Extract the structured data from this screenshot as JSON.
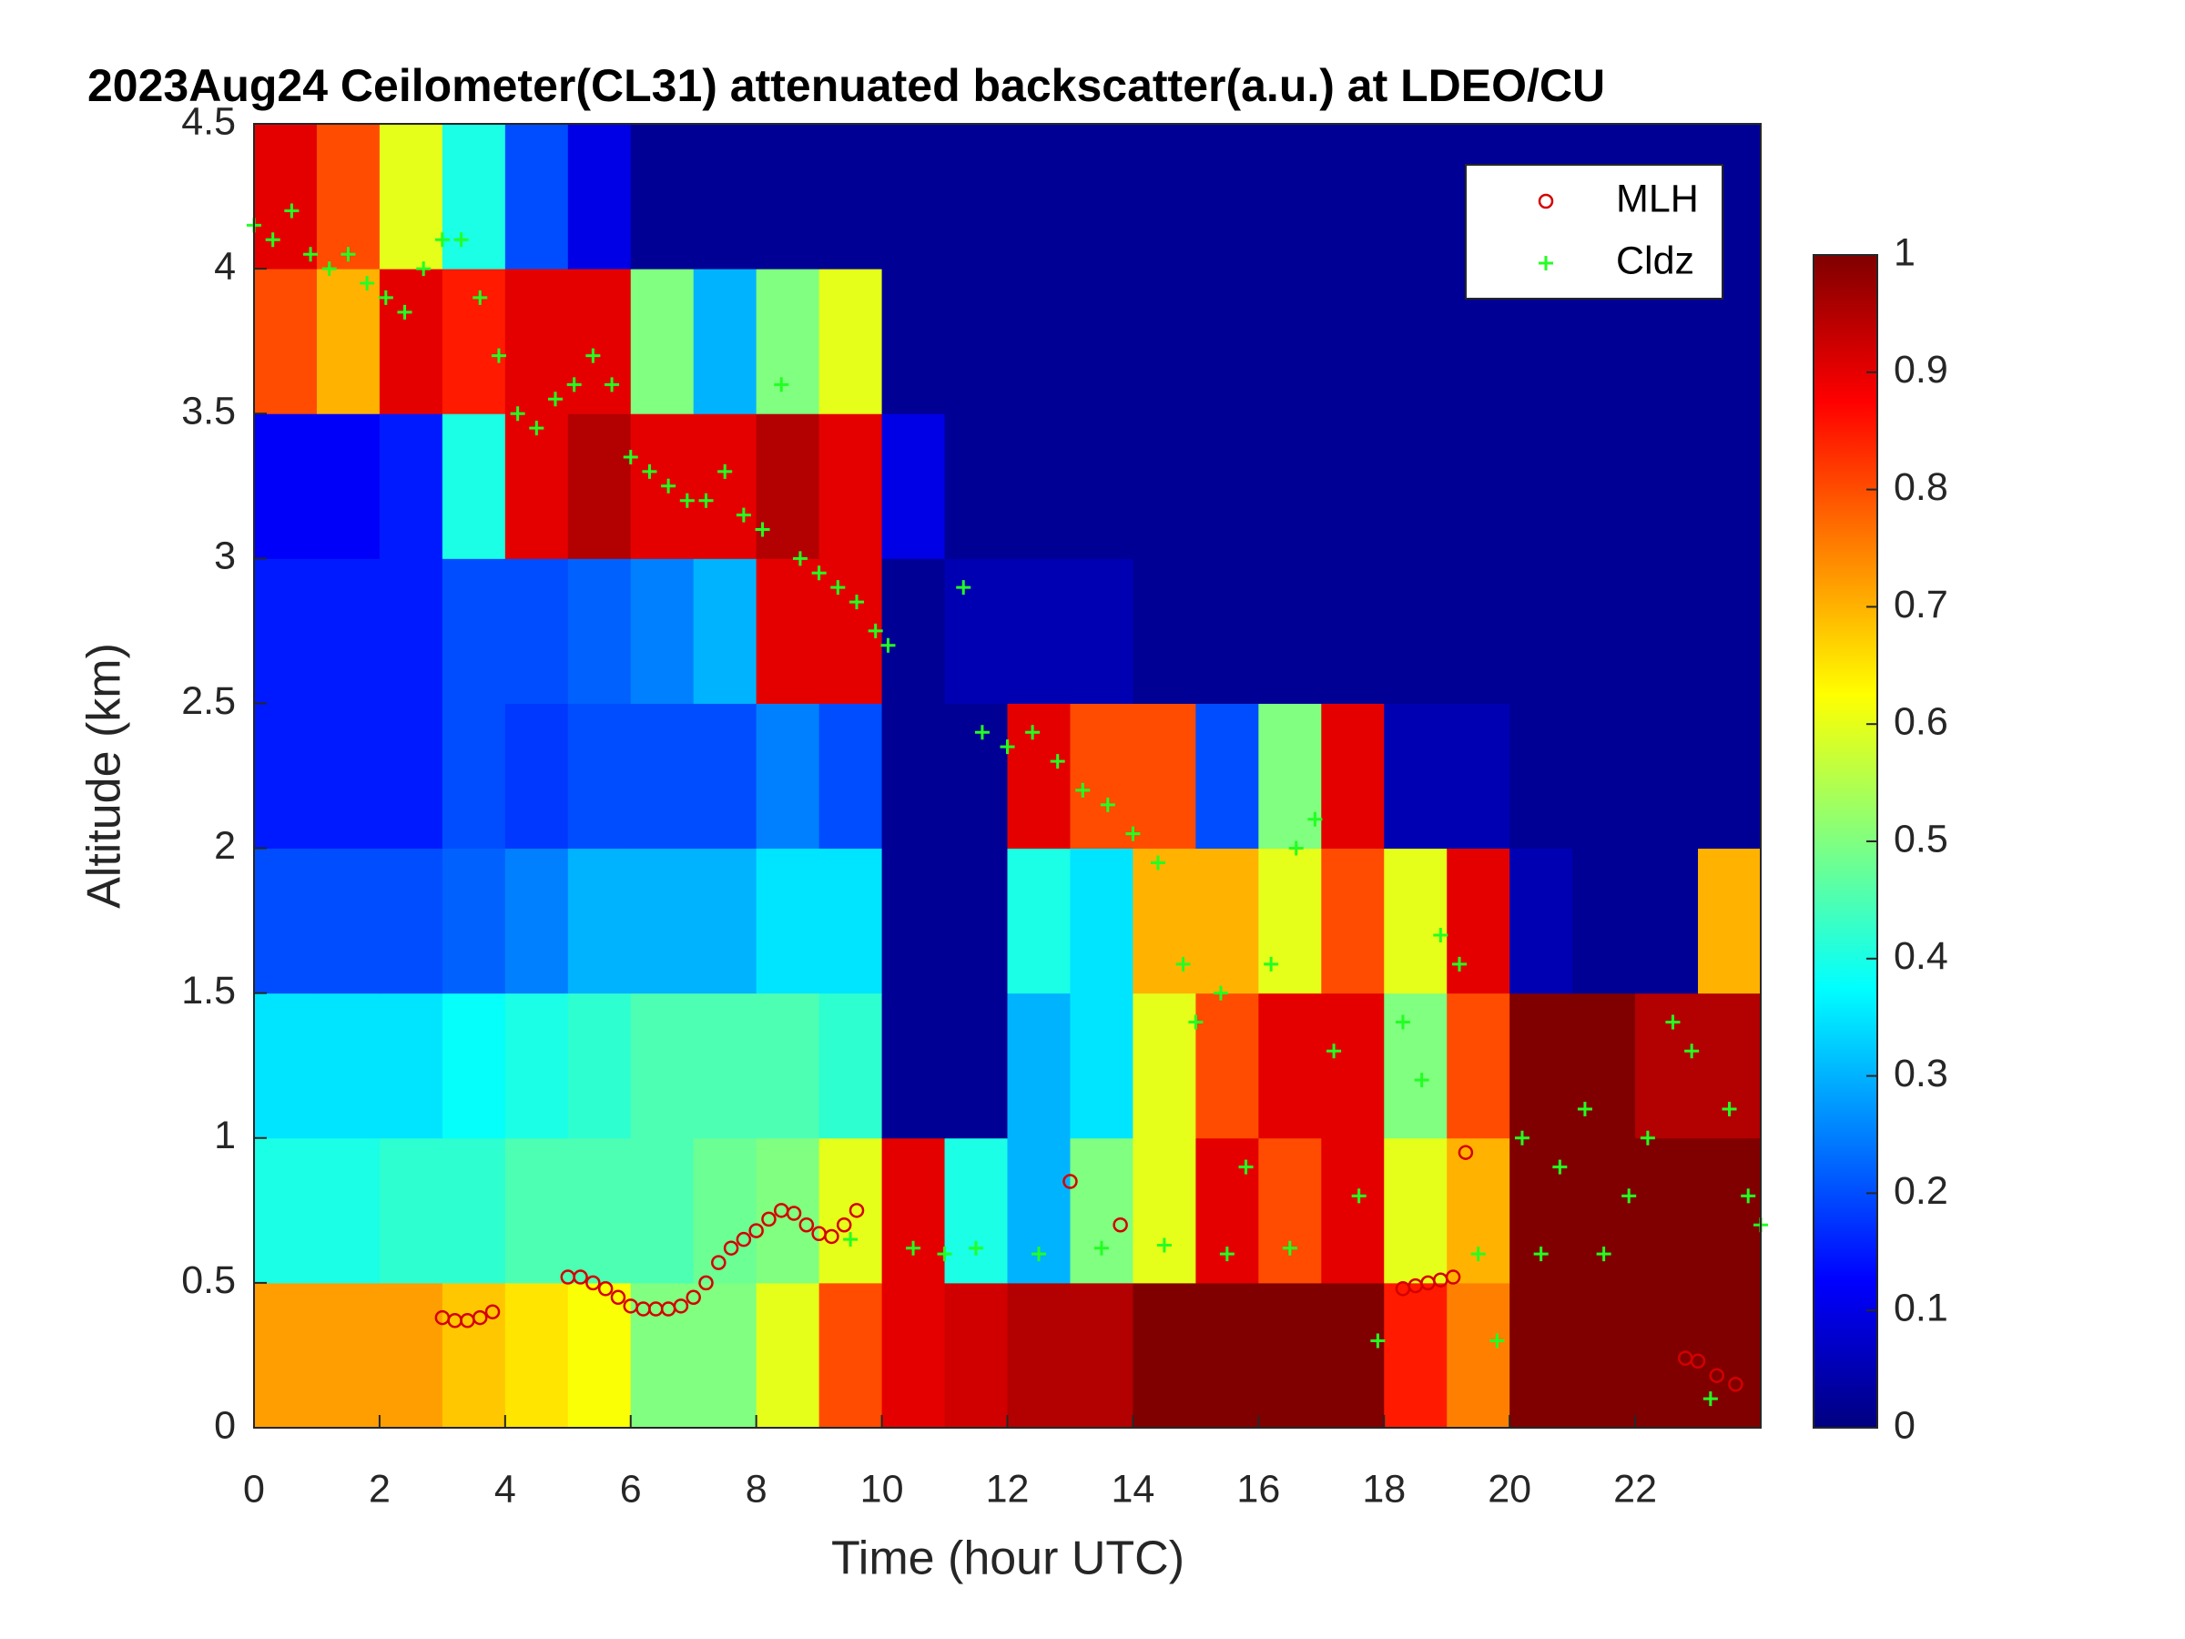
{
  "chart_data": {
    "type": "heatmap",
    "title": "2023Aug24 Ceilometer(CL31) attenuated backscatter(a.u.) at LDEO/CU",
    "xlabel": "Time (hour UTC)",
    "ylabel": "Altitude (km)",
    "xlim": [
      0,
      24
    ],
    "ylim": [
      0,
      4.5
    ],
    "xticks": [
      0,
      2,
      4,
      6,
      8,
      10,
      12,
      14,
      16,
      18,
      20,
      22
    ],
    "yticks": [
      0,
      0.5,
      1,
      1.5,
      2,
      2.5,
      3,
      3.5,
      4,
      4.5
    ],
    "colormap": "jet",
    "clim": [
      0,
      1
    ],
    "cticks": [
      0,
      0.1,
      0.2,
      0.3,
      0.4,
      0.5,
      0.6,
      0.7,
      0.8,
      0.9,
      1
    ],
    "legend": "top-right",
    "x": [
      0.5,
      1.5,
      2.5,
      3.5,
      4.5,
      5.5,
      6.5,
      7.5,
      8.5,
      9.5,
      10.5,
      11.5,
      12.5,
      13.5,
      14.5,
      15.5,
      16.5,
      17.5,
      18.5,
      19.5,
      20.5,
      21.5,
      22.5,
      23.5
    ],
    "y": [
      0.25,
      0.75,
      1.25,
      1.75,
      2.25,
      2.75,
      3.25,
      3.75,
      4.25
    ],
    "z": [
      [
        0.72,
        0.72,
        0.72,
        0.68,
        0.65,
        0.62,
        0.5,
        0.5,
        0.6,
        0.8,
        0.9,
        0.92,
        0.95,
        0.95,
        1,
        1,
        1,
        1,
        0.85,
        0.75,
        1,
        1,
        1,
        1
      ],
      [
        0.4,
        0.4,
        0.42,
        0.42,
        0.45,
        0.45,
        0.45,
        0.48,
        0.5,
        0.6,
        0.9,
        0.4,
        0.3,
        0.5,
        0.6,
        0.9,
        0.8,
        0.9,
        0.6,
        0.7,
        1,
        1,
        1,
        1
      ],
      [
        0.35,
        0.35,
        0.35,
        0.38,
        0.4,
        0.42,
        0.45,
        0.45,
        0.45,
        0.42,
        0.02,
        0.02,
        0.3,
        0.35,
        0.6,
        0.8,
        0.9,
        0.9,
        0.5,
        0.8,
        1,
        1,
        0.95,
        0.95
      ],
      [
        0.2,
        0.2,
        0.2,
        0.22,
        0.25,
        0.3,
        0.3,
        0.3,
        0.35,
        0.35,
        0.02,
        0.02,
        0.4,
        0.35,
        0.7,
        0.7,
        0.6,
        0.8,
        0.6,
        0.9,
        0.05,
        0.02,
        0.02,
        0.7
      ],
      [
        0.15,
        0.15,
        0.15,
        0.2,
        0.18,
        0.2,
        0.2,
        0.2,
        0.25,
        0.2,
        0.02,
        0.02,
        0.9,
        0.8,
        0.8,
        0.2,
        0.5,
        0.9,
        0.05,
        0.05,
        0.02,
        0.02,
        0.02,
        0.02
      ],
      [
        0.15,
        0.15,
        0.15,
        0.2,
        0.2,
        0.22,
        0.25,
        0.3,
        0.9,
        0.9,
        0.02,
        0.05,
        0.05,
        0.05,
        0.02,
        0.02,
        0.02,
        0.02,
        0.02,
        0.02,
        0.02,
        0.02,
        0.02,
        0.02
      ],
      [
        0.12,
        0.12,
        0.15,
        0.4,
        0.9,
        0.95,
        0.9,
        0.9,
        0.95,
        0.9,
        0.1,
        0.02,
        0.02,
        0.02,
        0.02,
        0.02,
        0.02,
        0.02,
        0.02,
        0.02,
        0.02,
        0.02,
        0.02,
        0.02
      ],
      [
        0.8,
        0.7,
        0.9,
        0.85,
        0.9,
        0.9,
        0.5,
        0.3,
        0.5,
        0.6,
        0.02,
        0.02,
        0.02,
        0.02,
        0.02,
        0.02,
        0.02,
        0.02,
        0.02,
        0.02,
        0.02,
        0.02,
        0.02,
        0.02
      ],
      [
        0.9,
        0.8,
        0.6,
        0.4,
        0.2,
        0.1,
        0.02,
        0.02,
        0.02,
        0.02,
        0.02,
        0.02,
        0.02,
        0.02,
        0.02,
        0.02,
        0.02,
        0.02,
        0.02,
        0.02,
        0.02,
        0.02,
        0.02,
        0.02
      ]
    ],
    "series": [
      {
        "name": "MLH",
        "color": "#d40000",
        "marker": "circle",
        "x": [
          3.0,
          3.2,
          3.4,
          3.6,
          3.8,
          5.0,
          5.2,
          5.4,
          5.6,
          5.8,
          6.0,
          6.2,
          6.4,
          6.6,
          6.8,
          7.0,
          7.2,
          7.4,
          7.6,
          7.8,
          8.0,
          8.2,
          8.4,
          8.6,
          8.8,
          9.0,
          9.2,
          9.4,
          9.6,
          13.0,
          13.8,
          18.3,
          18.5,
          18.7,
          18.9,
          19.1,
          19.3,
          22.8,
          23.0,
          23.3,
          23.6
        ],
        "values": [
          0.38,
          0.37,
          0.37,
          0.38,
          0.4,
          0.52,
          0.52,
          0.5,
          0.48,
          0.45,
          0.42,
          0.41,
          0.41,
          0.41,
          0.42,
          0.45,
          0.5,
          0.57,
          0.62,
          0.65,
          0.68,
          0.72,
          0.75,
          0.74,
          0.7,
          0.67,
          0.66,
          0.7,
          0.75,
          0.85,
          0.7,
          0.48,
          0.49,
          0.5,
          0.51,
          0.52,
          0.95,
          0.24,
          0.23,
          0.18,
          0.15
        ]
      },
      {
        "name": "Cldz",
        "color": "#22ff22",
        "marker": "plus",
        "x": [
          0,
          0.3,
          0.6,
          0.9,
          1.2,
          1.5,
          1.8,
          2.1,
          2.4,
          2.7,
          3.0,
          3.3,
          3.6,
          3.9,
          4.2,
          4.5,
          4.8,
          5.1,
          5.4,
          5.7,
          6.0,
          6.3,
          6.6,
          6.9,
          7.2,
          7.5,
          7.8,
          8.1,
          8.4,
          8.7,
          9.0,
          9.3,
          9.6,
          9.9,
          10.1,
          11.3,
          11.6,
          12.0,
          12.4,
          12.8,
          13.2,
          13.6,
          14.0,
          14.4,
          14.8,
          15.0,
          15.4,
          15.8,
          16.2,
          16.6,
          16.9,
          17.2,
          17.6,
          17.9,
          18.3,
          18.6,
          18.9,
          19.2,
          19.5,
          19.8,
          20.2,
          20.5,
          20.8,
          21.2,
          21.5,
          21.9,
          22.2,
          22.6,
          22.9,
          23.2,
          23.5,
          23.8,
          24.0,
          9.5,
          10.5,
          11.0,
          11.5,
          12.5,
          13.5,
          14.5,
          15.5,
          16.5
        ],
        "values": [
          4.15,
          4.1,
          4.2,
          4.05,
          4.0,
          4.05,
          3.95,
          3.9,
          3.85,
          4.0,
          4.1,
          4.1,
          3.9,
          3.7,
          3.5,
          3.45,
          3.55,
          3.6,
          3.7,
          3.6,
          3.35,
          3.3,
          3.25,
          3.2,
          3.2,
          3.3,
          3.15,
          3.1,
          3.6,
          3.0,
          2.95,
          2.9,
          2.85,
          2.75,
          2.7,
          2.9,
          2.4,
          2.35,
          2.4,
          2.3,
          2.2,
          2.15,
          2.05,
          1.95,
          1.6,
          1.4,
          1.5,
          0.9,
          1.6,
          2.0,
          2.1,
          1.3,
          0.8,
          0.3,
          1.4,
          1.2,
          1.7,
          1.6,
          0.6,
          0.3,
          1.0,
          0.6,
          0.9,
          1.1,
          0.6,
          0.8,
          1.0,
          1.4,
          1.3,
          0.1,
          1.1,
          0.8,
          0.7,
          0.65,
          0.62,
          0.6,
          0.62,
          0.6,
          0.62,
          0.63,
          0.6,
          0.62
        ]
      }
    ]
  }
}
